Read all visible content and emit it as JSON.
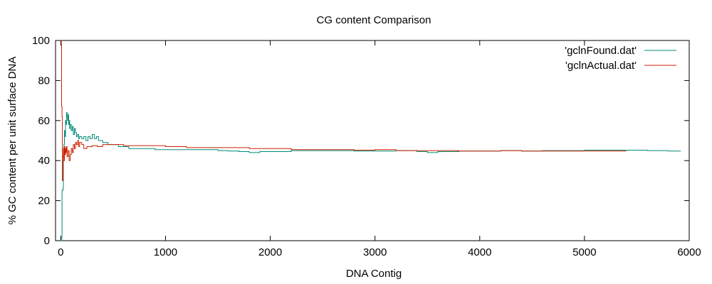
{
  "chart_data": {
    "type": "line",
    "title": "CG content Comparison",
    "xlabel": "DNA Contig",
    "ylabel": "% GC content per unit surface DNA",
    "xlim": [
      -50,
      6000
    ],
    "ylim": [
      0,
      100
    ],
    "xticks": [
      0,
      1000,
      2000,
      3000,
      4000,
      5000,
      6000
    ],
    "yticks": [
      0,
      20,
      40,
      60,
      80,
      100
    ],
    "grid": false,
    "legend_position": "top-right",
    "series": [
      {
        "name": "'gclnFound.dat'",
        "color": "#008b77",
        "points": [
          [
            0,
            0
          ],
          [
            10,
            2
          ],
          [
            12,
            25
          ],
          [
            20,
            26
          ],
          [
            25,
            40
          ],
          [
            30,
            48
          ],
          [
            35,
            55
          ],
          [
            40,
            52
          ],
          [
            45,
            60
          ],
          [
            50,
            58
          ],
          [
            55,
            64
          ],
          [
            60,
            62
          ],
          [
            65,
            60
          ],
          [
            70,
            63
          ],
          [
            75,
            58
          ],
          [
            80,
            60
          ],
          [
            85,
            56
          ],
          [
            90,
            58
          ],
          [
            100,
            55
          ],
          [
            110,
            57
          ],
          [
            120,
            53
          ],
          [
            130,
            56
          ],
          [
            140,
            54
          ],
          [
            150,
            52
          ],
          [
            160,
            53
          ],
          [
            170,
            51
          ],
          [
            180,
            52
          ],
          [
            200,
            51
          ],
          [
            220,
            52
          ],
          [
            240,
            50
          ],
          [
            260,
            52
          ],
          [
            280,
            51
          ],
          [
            300,
            53
          ],
          [
            320,
            51
          ],
          [
            340,
            52
          ],
          [
            360,
            50
          ],
          [
            400,
            49
          ],
          [
            450,
            48
          ],
          [
            500,
            48
          ],
          [
            550,
            47
          ],
          [
            600,
            47
          ],
          [
            650,
            46
          ],
          [
            700,
            46
          ],
          [
            800,
            46
          ],
          [
            900,
            45.5
          ],
          [
            1000,
            45.5
          ],
          [
            1200,
            45.5
          ],
          [
            1400,
            45.5
          ],
          [
            1500,
            45
          ],
          [
            1600,
            44.8
          ],
          [
            1700,
            44.5
          ],
          [
            1800,
            44
          ],
          [
            1900,
            44.5
          ],
          [
            2000,
            44.5
          ],
          [
            2200,
            45
          ],
          [
            2400,
            45
          ],
          [
            2600,
            45
          ],
          [
            2800,
            44.8
          ],
          [
            3000,
            44.8
          ],
          [
            3200,
            45
          ],
          [
            3400,
            44.5
          ],
          [
            3500,
            44
          ],
          [
            3600,
            44.5
          ],
          [
            3800,
            44.8
          ],
          [
            4000,
            44.8
          ],
          [
            4200,
            45
          ],
          [
            4400,
            44.8
          ],
          [
            4600,
            45
          ],
          [
            4800,
            45
          ],
          [
            5000,
            45.2
          ],
          [
            5200,
            45.2
          ],
          [
            5400,
            45.2
          ],
          [
            5600,
            45
          ],
          [
            5800,
            44.8
          ],
          [
            5920,
            44.8
          ]
        ]
      },
      {
        "name": "'gclnActual.dat'",
        "color": "#cc2200",
        "points": [
          [
            0,
            100
          ],
          [
            5,
            98
          ],
          [
            8,
            67
          ],
          [
            12,
            62
          ],
          [
            15,
            30
          ],
          [
            20,
            42
          ],
          [
            25,
            46
          ],
          [
            30,
            40
          ],
          [
            35,
            47
          ],
          [
            40,
            43
          ],
          [
            45,
            46
          ],
          [
            50,
            44
          ],
          [
            55,
            47
          ],
          [
            60,
            42
          ],
          [
            70,
            45
          ],
          [
            80,
            40
          ],
          [
            90,
            43
          ],
          [
            100,
            46
          ],
          [
            110,
            44
          ],
          [
            120,
            48
          ],
          [
            130,
            46
          ],
          [
            140,
            49
          ],
          [
            150,
            48
          ],
          [
            160,
            50
          ],
          [
            170,
            47
          ],
          [
            180,
            49
          ],
          [
            200,
            48
          ],
          [
            220,
            46
          ],
          [
            250,
            47
          ],
          [
            300,
            47.5
          ],
          [
            350,
            47
          ],
          [
            400,
            48
          ],
          [
            500,
            48
          ],
          [
            600,
            47.5
          ],
          [
            700,
            47.5
          ],
          [
            800,
            47.5
          ],
          [
            1000,
            47
          ],
          [
            1200,
            46.5
          ],
          [
            1400,
            46.5
          ],
          [
            1600,
            46.5
          ],
          [
            1800,
            46
          ],
          [
            2000,
            46
          ],
          [
            2200,
            45.5
          ],
          [
            2400,
            45.5
          ],
          [
            2600,
            45.5
          ],
          [
            2800,
            45.2
          ],
          [
            3000,
            45.5
          ],
          [
            3200,
            45
          ],
          [
            3400,
            45
          ],
          [
            3600,
            45
          ],
          [
            3800,
            44.8
          ],
          [
            4000,
            44.8
          ],
          [
            4200,
            45
          ],
          [
            4400,
            44.8
          ],
          [
            4600,
            44.8
          ],
          [
            4800,
            44.8
          ],
          [
            5000,
            44.8
          ],
          [
            5200,
            44.8
          ],
          [
            5400,
            44.8
          ]
        ]
      }
    ]
  }
}
